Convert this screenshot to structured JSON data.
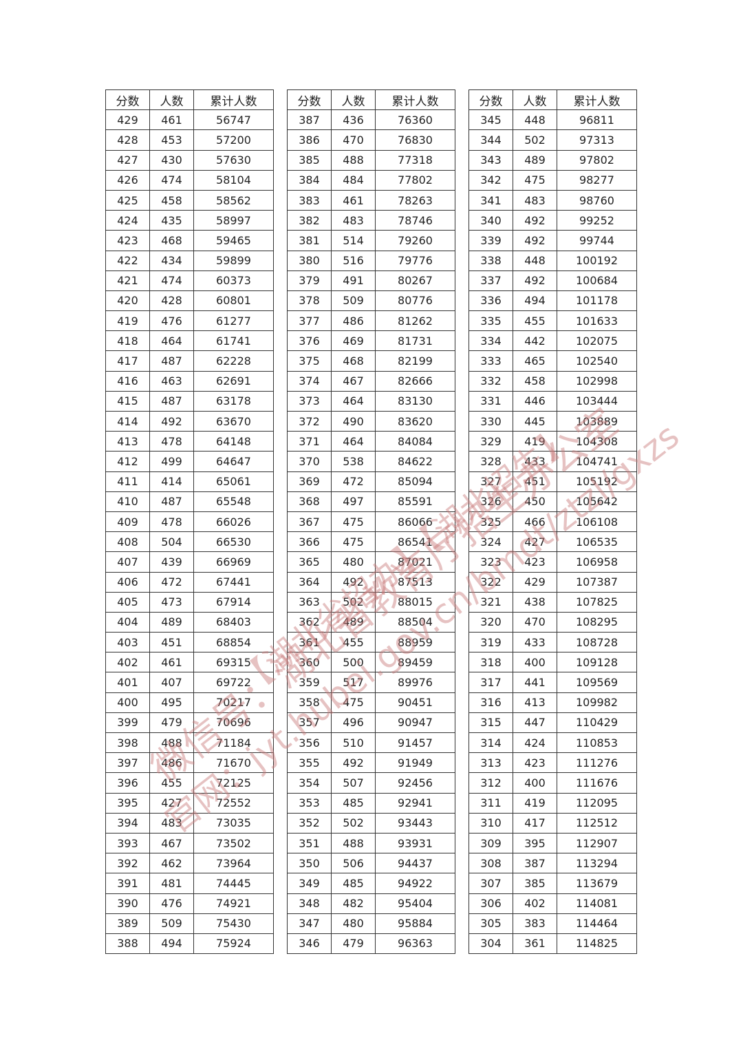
{
  "headers": [
    "分数",
    "人数",
    "累计人数"
  ],
  "tables": [
    [
      [
        429,
        461,
        56747
      ],
      [
        428,
        453,
        57200
      ],
      [
        427,
        430,
        57630
      ],
      [
        426,
        474,
        58104
      ],
      [
        425,
        458,
        58562
      ],
      [
        424,
        435,
        58997
      ],
      [
        423,
        468,
        59465
      ],
      [
        422,
        434,
        59899
      ],
      [
        421,
        474,
        60373
      ],
      [
        420,
        428,
        60801
      ],
      [
        419,
        476,
        61277
      ],
      [
        418,
        464,
        61741
      ],
      [
        417,
        487,
        62228
      ],
      [
        416,
        463,
        62691
      ],
      [
        415,
        487,
        63178
      ],
      [
        414,
        492,
        63670
      ],
      [
        413,
        478,
        64148
      ],
      [
        412,
        499,
        64647
      ],
      [
        411,
        414,
        65061
      ],
      [
        410,
        487,
        65548
      ],
      [
        409,
        478,
        66026
      ],
      [
        408,
        504,
        66530
      ],
      [
        407,
        439,
        66969
      ],
      [
        406,
        472,
        67441
      ],
      [
        405,
        473,
        67914
      ],
      [
        404,
        489,
        68403
      ],
      [
        403,
        451,
        68854
      ],
      [
        402,
        461,
        69315
      ],
      [
        401,
        407,
        69722
      ],
      [
        400,
        495,
        70217
      ],
      [
        399,
        479,
        70696
      ],
      [
        398,
        488,
        71184
      ],
      [
        397,
        486,
        71670
      ],
      [
        396,
        455,
        72125
      ],
      [
        395,
        427,
        72552
      ],
      [
        394,
        483,
        73035
      ],
      [
        393,
        467,
        73502
      ],
      [
        392,
        462,
        73964
      ],
      [
        391,
        481,
        74445
      ],
      [
        390,
        476,
        74921
      ],
      [
        389,
        509,
        75430
      ],
      [
        388,
        494,
        75924
      ]
    ],
    [
      [
        387,
        436,
        76360
      ],
      [
        386,
        470,
        76830
      ],
      [
        385,
        488,
        77318
      ],
      [
        384,
        484,
        77802
      ],
      [
        383,
        461,
        78263
      ],
      [
        382,
        483,
        78746
      ],
      [
        381,
        514,
        79260
      ],
      [
        380,
        516,
        79776
      ],
      [
        379,
        491,
        80267
      ],
      [
        378,
        509,
        80776
      ],
      [
        377,
        486,
        81262
      ],
      [
        376,
        469,
        81731
      ],
      [
        375,
        468,
        82199
      ],
      [
        374,
        467,
        82666
      ],
      [
        373,
        464,
        83130
      ],
      [
        372,
        490,
        83620
      ],
      [
        371,
        464,
        84084
      ],
      [
        370,
        538,
        84622
      ],
      [
        369,
        472,
        85094
      ],
      [
        368,
        497,
        85591
      ],
      [
        367,
        475,
        86066
      ],
      [
        366,
        475,
        86541
      ],
      [
        365,
        480,
        87021
      ],
      [
        364,
        492,
        87513
      ],
      [
        363,
        502,
        88015
      ],
      [
        362,
        489,
        88504
      ],
      [
        361,
        455,
        88959
      ],
      [
        360,
        500,
        89459
      ],
      [
        359,
        517,
        89976
      ],
      [
        358,
        475,
        90451
      ],
      [
        357,
        496,
        90947
      ],
      [
        356,
        510,
        91457
      ],
      [
        355,
        492,
        91949
      ],
      [
        354,
        507,
        92456
      ],
      [
        353,
        485,
        92941
      ],
      [
        352,
        502,
        93443
      ],
      [
        351,
        488,
        93931
      ],
      [
        350,
        506,
        94437
      ],
      [
        349,
        485,
        94922
      ],
      [
        348,
        482,
        95404
      ],
      [
        347,
        480,
        95884
      ],
      [
        346,
        479,
        96363
      ]
    ],
    [
      [
        345,
        448,
        96811
      ],
      [
        344,
        502,
        97313
      ],
      [
        343,
        489,
        97802
      ],
      [
        342,
        475,
        98277
      ],
      [
        341,
        483,
        98760
      ],
      [
        340,
        492,
        99252
      ],
      [
        339,
        492,
        99744
      ],
      [
        338,
        448,
        100192
      ],
      [
        337,
        492,
        100684
      ],
      [
        336,
        494,
        101178
      ],
      [
        335,
        455,
        101633
      ],
      [
        334,
        442,
        102075
      ],
      [
        333,
        465,
        102540
      ],
      [
        332,
        458,
        102998
      ],
      [
        331,
        446,
        103444
      ],
      [
        330,
        445,
        103889
      ],
      [
        329,
        419,
        104308
      ],
      [
        328,
        433,
        104741
      ],
      [
        327,
        451,
        105192
      ],
      [
        326,
        450,
        105642
      ],
      [
        325,
        466,
        106108
      ],
      [
        324,
        427,
        106535
      ],
      [
        323,
        423,
        106958
      ],
      [
        322,
        429,
        107387
      ],
      [
        321,
        438,
        107825
      ],
      [
        320,
        470,
        108295
      ],
      [
        319,
        433,
        108728
      ],
      [
        318,
        400,
        109128
      ],
      [
        317,
        441,
        109569
      ],
      [
        316,
        413,
        109982
      ],
      [
        315,
        447,
        110429
      ],
      [
        314,
        424,
        110853
      ],
      [
        313,
        423,
        111276
      ],
      [
        312,
        400,
        111676
      ],
      [
        311,
        419,
        112095
      ],
      [
        310,
        417,
        112512
      ],
      [
        309,
        395,
        112907
      ],
      [
        308,
        387,
        113294
      ],
      [
        307,
        385,
        113679
      ],
      [
        306,
        402,
        114081
      ],
      [
        305,
        383,
        114464
      ],
      [
        304,
        361,
        114825
      ]
    ]
  ],
  "watermark": {
    "line1": "微信号：湖北省教育厅招生办公室",
    "line2": "【湖北省招办】【湖北招生】",
    "line3": "官网：jyt.hubei.gov.cn/bmdt/ztzl/gxzs"
  }
}
